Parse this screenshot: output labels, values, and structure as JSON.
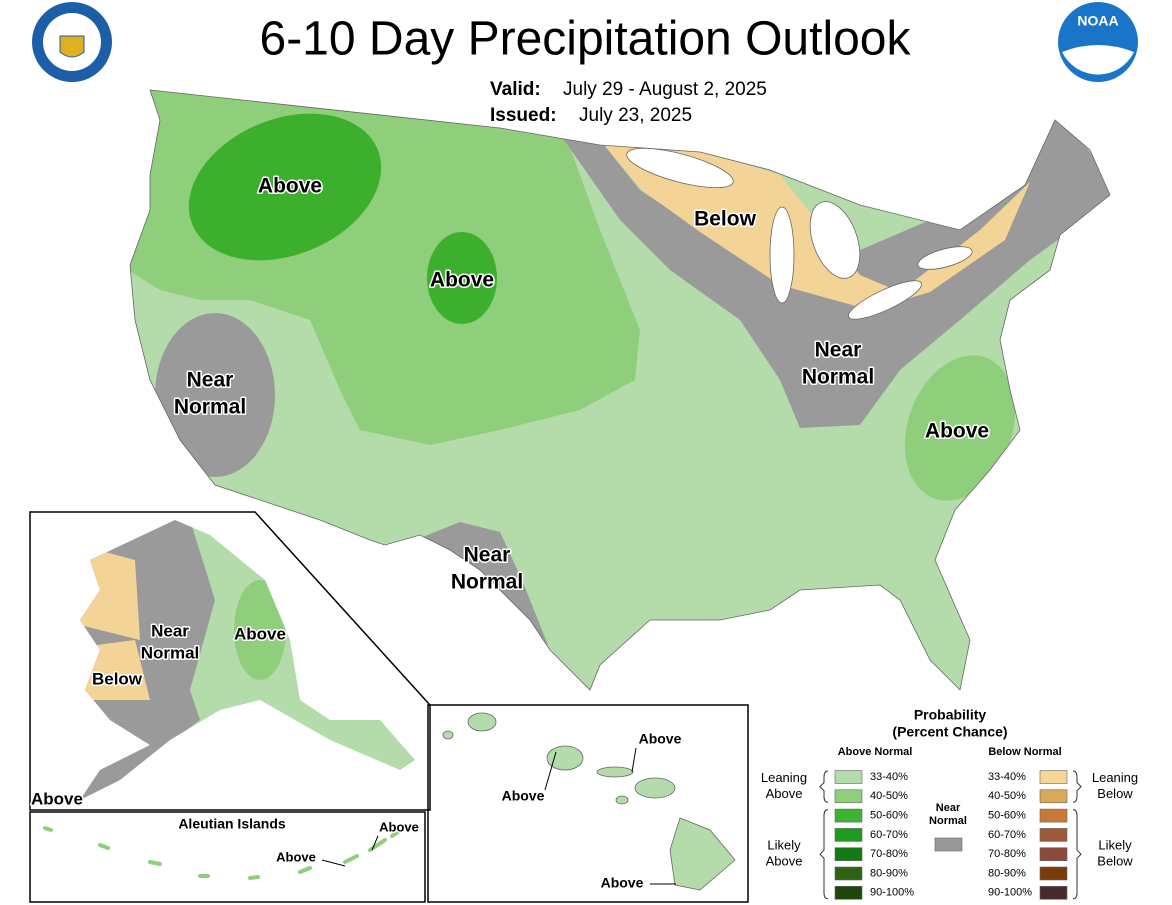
{
  "header": {
    "title": "6-10 Day Precipitation Outlook",
    "valid_label": "Valid:",
    "valid_dates": "July 29 - August 2, 2025",
    "issued_label": "Issued:",
    "issued_date": "July 23, 2025",
    "noaa_logo": "NOAA"
  },
  "conus_labels": [
    [
      "Above"
    ],
    [
      "Above"
    ],
    [
      "Below"
    ],
    [
      "Near",
      "Normal"
    ],
    [
      "Near",
      "Normal"
    ],
    [
      "Above"
    ],
    [
      "Near",
      "Normal"
    ]
  ],
  "alaska_labels": [
    [
      "Near",
      "Normal"
    ],
    [
      "Above"
    ],
    [
      "Below"
    ],
    [
      "Above"
    ]
  ],
  "hawaii_labels": [
    "Above",
    "Above",
    "Above"
  ],
  "aleutians": {
    "title": "Aleutian Islands",
    "labels": [
      "Above",
      "Above"
    ]
  },
  "legend": {
    "title": [
      "Probability",
      "(Percent Chance)"
    ],
    "above": {
      "heading": "Above Normal",
      "groups": [
        [
          "Leaning",
          "Above"
        ],
        [
          "Likely",
          "Above"
        ]
      ],
      "items": [
        {
          "label": "33-40%",
          "color": "#b3dcaa"
        },
        {
          "label": "40-50%",
          "color": "#8fcf7b"
        },
        {
          "label": "50-60%",
          "color": "#3cb431"
        },
        {
          "label": "60-70%",
          "color": "#1e9a1e"
        },
        {
          "label": "70-80%",
          "color": "#147814"
        },
        {
          "label": "80-90%",
          "color": "#2d6414"
        },
        {
          "label": "90-100%",
          "color": "#1e4608"
        }
      ]
    },
    "below": {
      "heading": "Below Normal",
      "groups": [
        [
          "Leaning",
          "Below"
        ],
        [
          "Likely",
          "Below"
        ]
      ],
      "items": [
        {
          "label": "33-40%",
          "color": "#f5d696"
        },
        {
          "label": "40-50%",
          "color": "#d9a95b"
        },
        {
          "label": "50-60%",
          "color": "#c87837"
        },
        {
          "label": "60-70%",
          "color": "#a0583a"
        },
        {
          "label": "70-80%",
          "color": "#8c4a3a"
        },
        {
          "label": "80-90%",
          "color": "#7a3c0a"
        },
        {
          "label": "90-100%",
          "color": "#4a2a2a"
        }
      ]
    },
    "near": {
      "heading": [
        "Near",
        "Normal"
      ],
      "color": "#999999"
    }
  }
}
